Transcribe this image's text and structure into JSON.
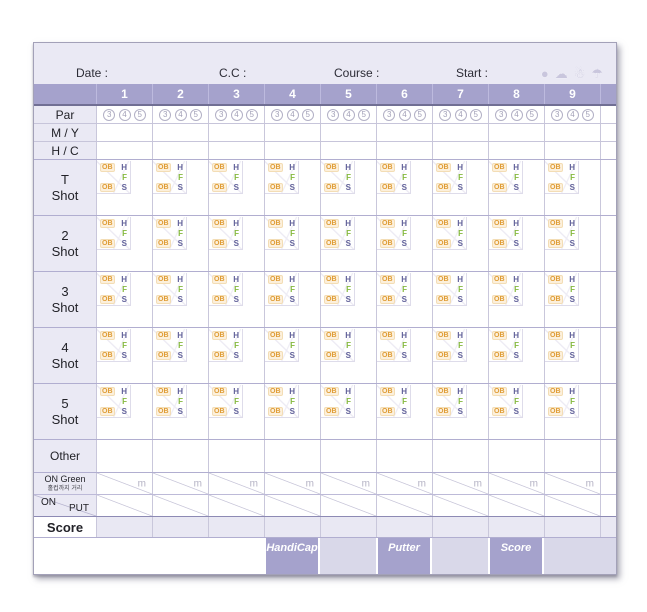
{
  "scorecard": {
    "header": {
      "fields": [
        {
          "label": "Date :"
        },
        {
          "label": "C.C :"
        },
        {
          "label": "Course :"
        },
        {
          "label": "Start :"
        }
      ],
      "weather": [
        {
          "name": "sun-icon",
          "glyph": "●"
        },
        {
          "name": "cloud-icon",
          "glyph": "☁"
        },
        {
          "name": "snow-icon",
          "glyph": "☃"
        },
        {
          "name": "umbrella-icon",
          "glyph": "☂"
        }
      ]
    },
    "columns": [
      "1",
      "2",
      "3",
      "4",
      "5",
      "6",
      "7",
      "8",
      "9"
    ],
    "par_row": {
      "label": "Par",
      "options": [
        "3",
        "4",
        "5"
      ]
    },
    "my_row": {
      "label": "M / Y"
    },
    "hc_row": {
      "label": "H / C"
    },
    "shot_rows": [
      {
        "line1": "T",
        "line2": "Shot"
      },
      {
        "line1": "2",
        "line2": "Shot"
      },
      {
        "line1": "3",
        "line2": "Shot"
      },
      {
        "line1": "4",
        "line2": "Shot"
      },
      {
        "line1": "5",
        "line2": "Shot"
      }
    ],
    "shot_markers": {
      "ob": "OB",
      "hazard": "H",
      "fairway": "F",
      "sand": "S"
    },
    "other_row": {
      "label": "Other"
    },
    "on_green_row": {
      "label": "ON Green",
      "sublabel": "홀컵까지 거리",
      "unit": "m"
    },
    "on_put_row": {
      "label_top": "ON",
      "label_bottom": "PUT"
    },
    "score_row": {
      "label": "Score"
    },
    "footer": [
      {
        "label": "HandiCap"
      },
      {
        "label": ""
      },
      {
        "label": "Putter"
      },
      {
        "label": ""
      },
      {
        "label": "Score"
      },
      {
        "label": ""
      }
    ],
    "colors": {
      "band_purple": "#a5a2cc",
      "light_lavender": "#eae9f4",
      "footer_light": "#d9d8e9",
      "score_cell": "#e9e8f3",
      "ob_orange": "#df9c35",
      "letter_blue": "#62629a",
      "fairway_green": "#85b93e",
      "line_purple": "#b1aed0"
    }
  }
}
